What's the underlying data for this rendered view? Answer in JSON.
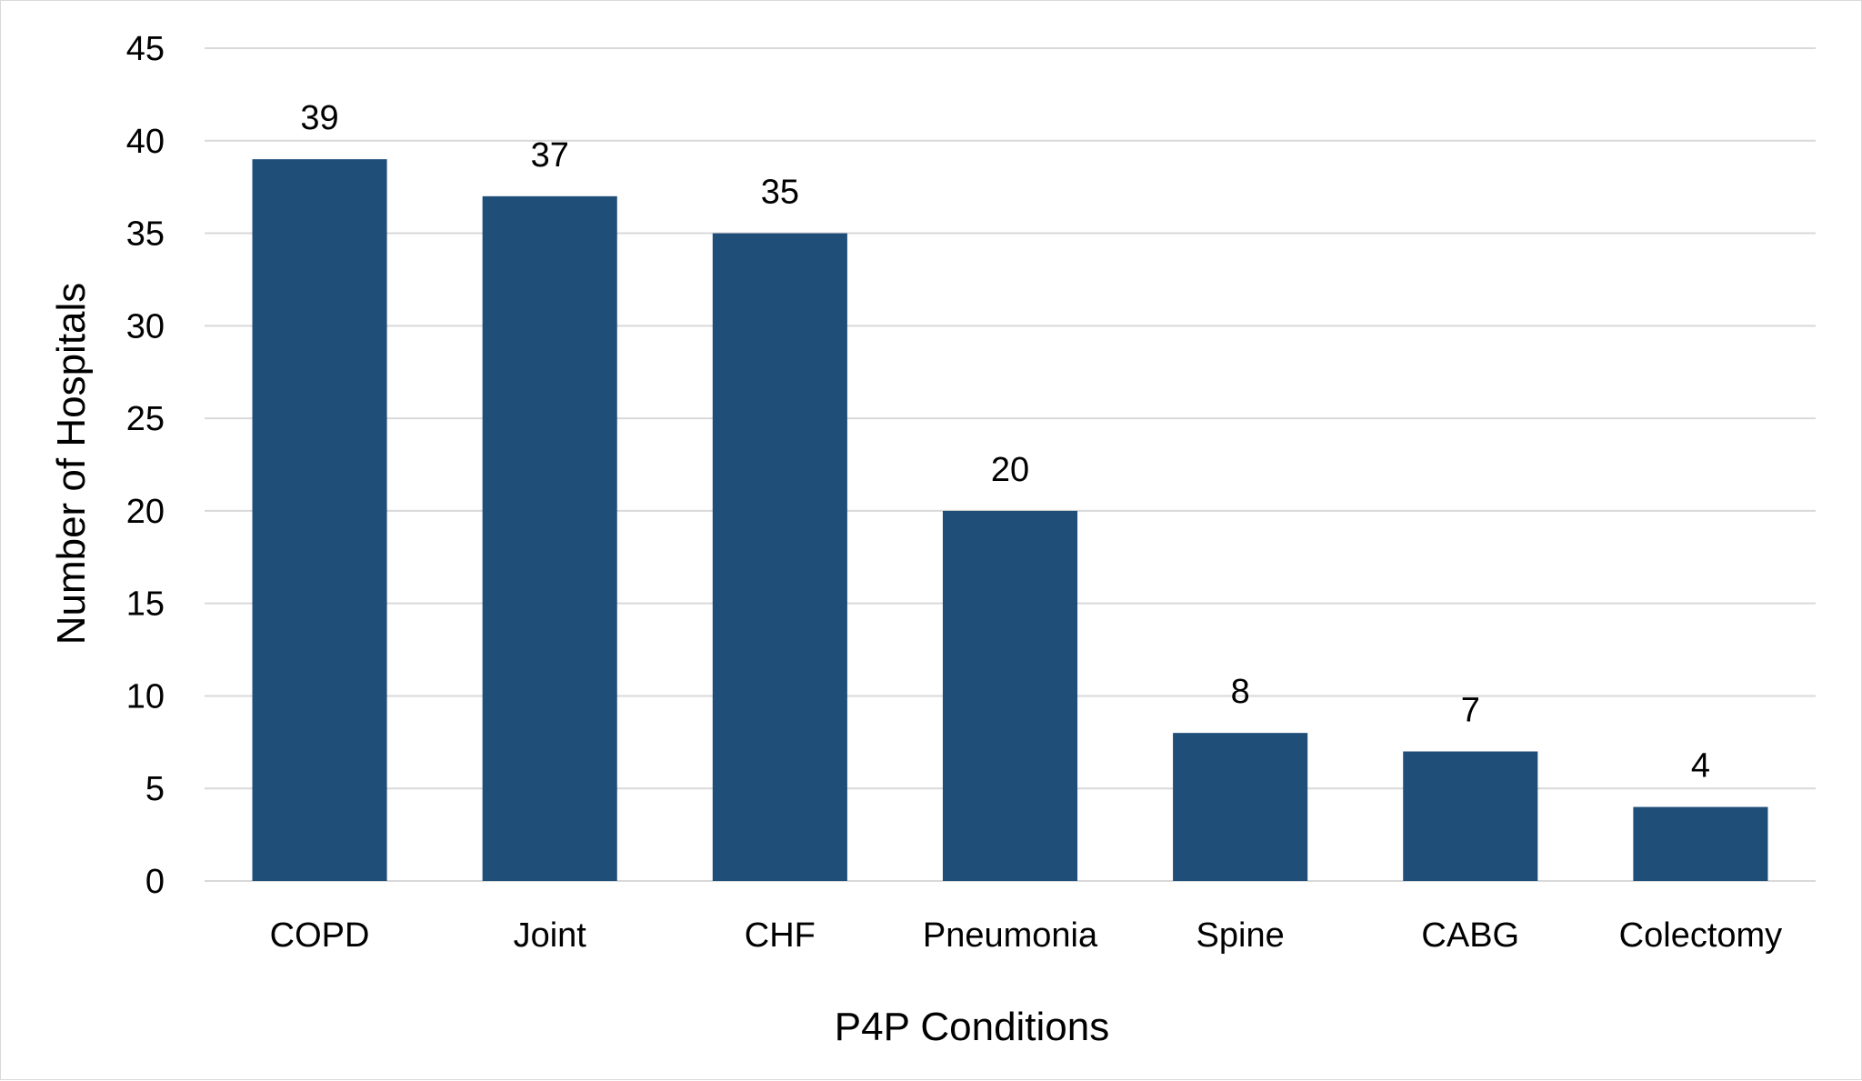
{
  "chart_data": {
    "type": "bar",
    "title": "",
    "xlabel": "P4P Conditions",
    "ylabel": "Number of Hospitals",
    "categories": [
      "COPD",
      "Joint",
      "CHF",
      "Pneumonia",
      "Spine",
      "CABG",
      "Colectomy"
    ],
    "values": [
      39,
      37,
      35,
      20,
      8,
      7,
      4
    ],
    "ylim": [
      0,
      45
    ],
    "yticks": [
      0,
      5,
      10,
      15,
      20,
      25,
      30,
      35,
      40,
      45
    ],
    "grid": true,
    "legend": "none",
    "data_labels": true,
    "bar_color": "#1f4e79",
    "grid_color": "#d9d9d9"
  }
}
